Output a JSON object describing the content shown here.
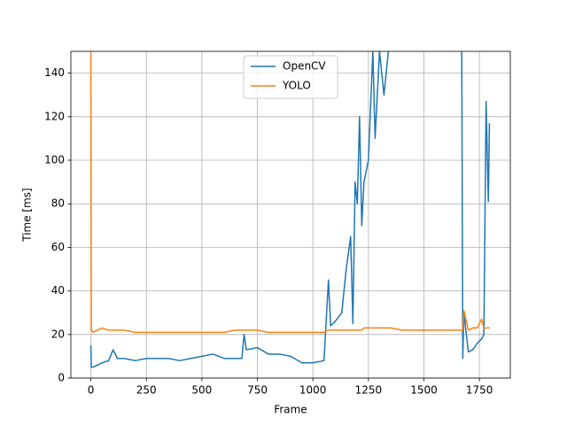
{
  "chart_data": {
    "type": "line",
    "xlabel": "Frame",
    "ylabel": "Time [ms]",
    "x": [
      0,
      2,
      10,
      50,
      80,
      100,
      120,
      150,
      200,
      250,
      300,
      350,
      400,
      450,
      500,
      550,
      600,
      650,
      680,
      690,
      700,
      750,
      800,
      850,
      900,
      950,
      1000,
      1050,
      1070,
      1080,
      1100,
      1130,
      1150,
      1170,
      1180,
      1190,
      1200,
      1210,
      1220,
      1230,
      1250,
      1270,
      1280,
      1300,
      1320,
      1340,
      1350,
      1400,
      1500,
      1600,
      1670,
      1675,
      1680,
      1700,
      1720,
      1740,
      1760,
      1770,
      1780,
      1790,
      1795
    ],
    "series": [
      {
        "name": "OpenCV",
        "color": "#1f77b4",
        "values": [
          15,
          5,
          5,
          7,
          8,
          13,
          9,
          9,
          8,
          9,
          9,
          9,
          8,
          9,
          10,
          11,
          9,
          9,
          9,
          20,
          13,
          14,
          11,
          11,
          10,
          7,
          7,
          8,
          45,
          24,
          26,
          30,
          50,
          65,
          25,
          90,
          80,
          120,
          70,
          90,
          100,
          150,
          110,
          150,
          130,
          150,
          160,
          null,
          null,
          null,
          160,
          9,
          30,
          12,
          13,
          16,
          18,
          20,
          127,
          81,
          117
        ]
      },
      {
        "name": "YOLO",
        "color": "#ff7f0e",
        "values": [
          150,
          22,
          21,
          23,
          22,
          22,
          22,
          22,
          21,
          21,
          21,
          21,
          21,
          21,
          21,
          21,
          21,
          22,
          22,
          22,
          22,
          22,
          21,
          21,
          21,
          21,
          21,
          21,
          22,
          22,
          22,
          22,
          22,
          22,
          22,
          22,
          22,
          22,
          22,
          23,
          23,
          23,
          23,
          23,
          23,
          23,
          23,
          22,
          22,
          22,
          22,
          22,
          31,
          22,
          23,
          23,
          27,
          23,
          23,
          23,
          23
        ]
      }
    ],
    "xlim": [
      -90,
      1889
    ],
    "xticks": [
      0,
      250,
      500,
      750,
      1000,
      1250,
      1500,
      1750
    ],
    "ylim": [
      0,
      150
    ],
    "yticks": [
      0,
      20,
      40,
      60,
      80,
      100,
      120,
      140
    ],
    "grid": true,
    "legend": "upper center"
  }
}
